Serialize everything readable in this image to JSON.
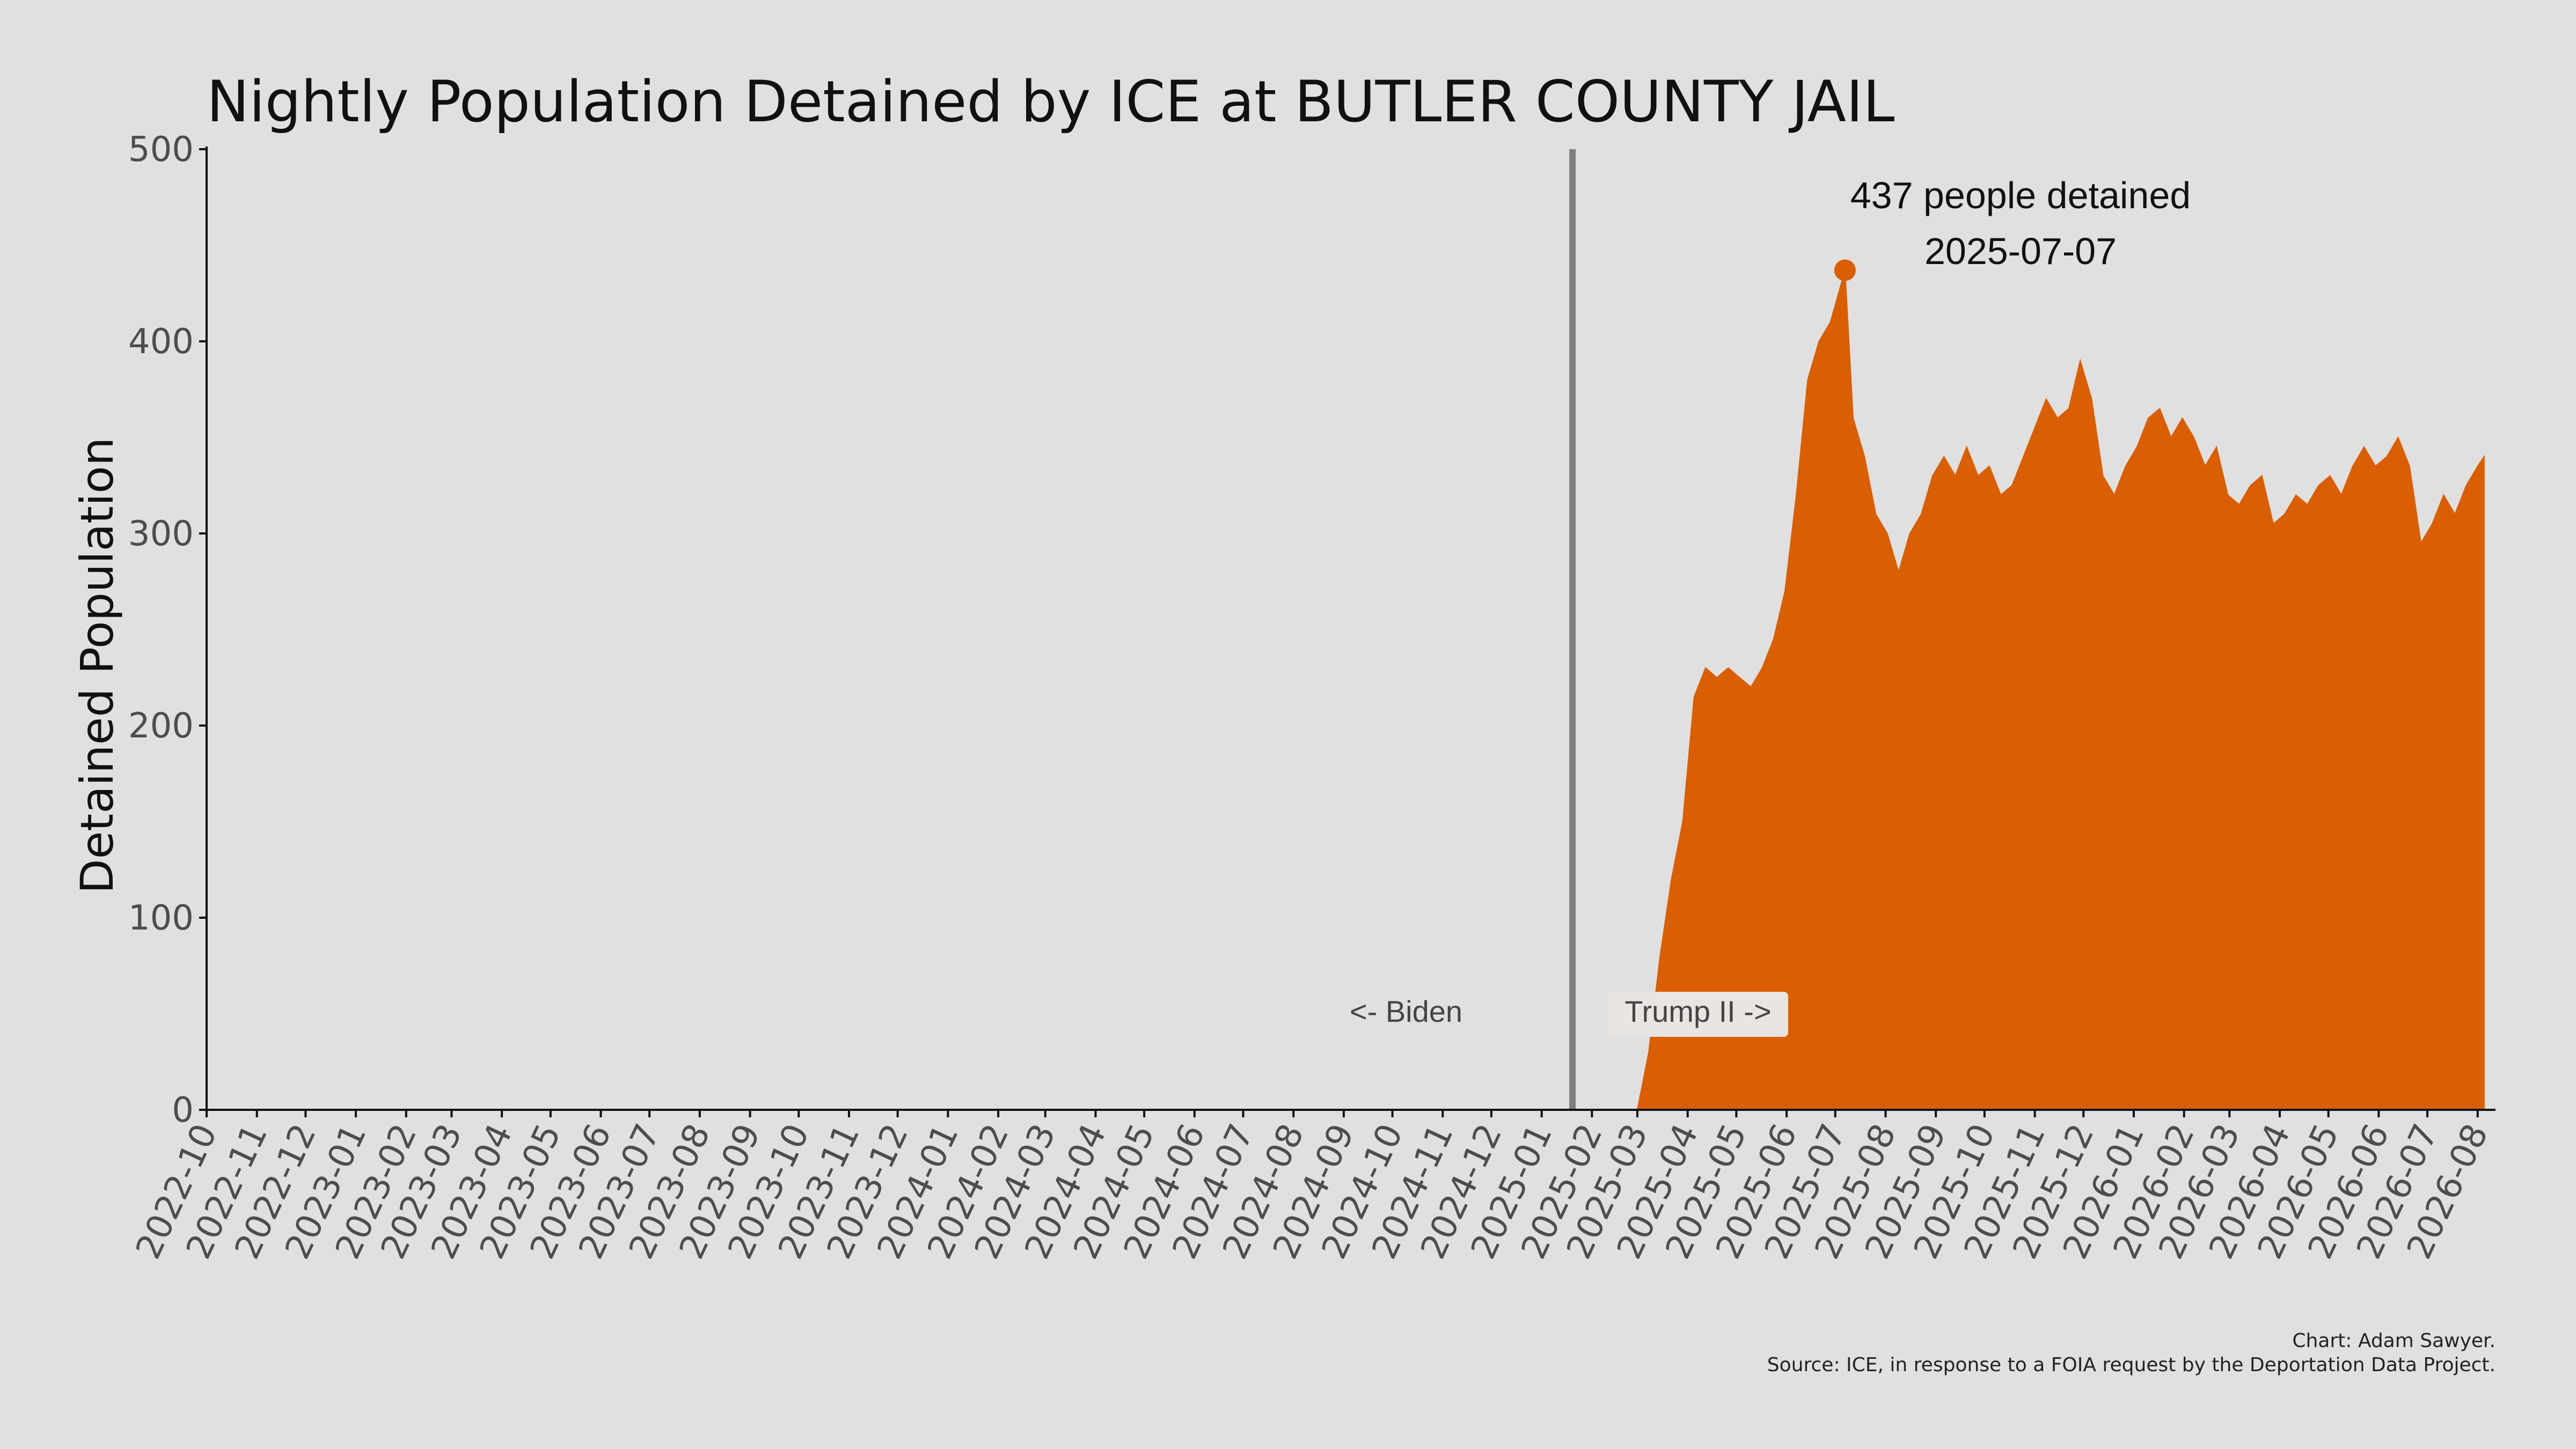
{
  "chart_data": {
    "type": "area",
    "title": "Nightly Population Detained by ICE at BUTLER COUNTY JAIL",
    "xlabel": "",
    "ylabel": "Detained Population",
    "xlim": [
      "2022-10-01",
      "2026-08-12"
    ],
    "ylim": [
      0,
      500
    ],
    "y_ticks": [
      "0",
      "100",
      "200",
      "300",
      "400",
      "500"
    ],
    "x_ticks": [
      "2022-10",
      "2022-11",
      "2022-12",
      "2023-01",
      "2023-02",
      "2023-03",
      "2023-04",
      "2023-05",
      "2023-06",
      "2023-07",
      "2023-08",
      "2023-09",
      "2023-10",
      "2023-11",
      "2023-12",
      "2024-01",
      "2024-02",
      "2024-03",
      "2024-04",
      "2024-05",
      "2024-06",
      "2024-07",
      "2024-08",
      "2024-09",
      "2024-10",
      "2024-11",
      "2024-12",
      "2025-01",
      "2025-02",
      "2025-03",
      "2025-04",
      "2025-05",
      "2025-06",
      "2025-07",
      "2025-08",
      "2025-09",
      "2025-10",
      "2025-11",
      "2025-12",
      "2026-01",
      "2026-02",
      "2026-03",
      "2026-04",
      "2026-05",
      "2026-06",
      "2026-07",
      "2026-08"
    ],
    "grid": false,
    "series": [
      {
        "color": "#d95f02",
        "x": [
          "2025-03-01",
          "2025-03-08",
          "2025-03-15",
          "2025-03-22",
          "2025-03-29",
          "2025-04-05",
          "2025-04-12",
          "2025-04-19",
          "2025-04-26",
          "2025-05-03",
          "2025-05-10",
          "2025-05-17",
          "2025-05-24",
          "2025-05-31",
          "2025-06-07",
          "2025-06-14",
          "2025-06-21",
          "2025-06-28",
          "2025-07-07",
          "2025-07-12",
          "2025-07-19",
          "2025-07-26",
          "2025-08-02",
          "2025-08-09",
          "2025-08-16",
          "2025-08-23",
          "2025-08-30",
          "2025-09-06",
          "2025-09-13",
          "2025-09-20",
          "2025-09-27",
          "2025-10-04",
          "2025-10-11",
          "2025-10-18",
          "2025-10-25",
          "2025-11-01",
          "2025-11-08",
          "2025-11-15",
          "2025-11-22",
          "2025-11-29",
          "2025-12-06",
          "2025-12-13",
          "2025-12-20",
          "2025-12-27",
          "2026-01-03",
          "2026-01-10",
          "2026-01-17",
          "2026-01-24",
          "2026-01-31",
          "2026-02-07",
          "2026-02-14",
          "2026-02-21",
          "2026-02-28",
          "2026-03-07",
          "2026-03-14",
          "2026-03-21",
          "2026-03-28",
          "2026-04-04",
          "2026-04-11",
          "2026-04-18",
          "2026-04-25",
          "2026-05-02",
          "2026-05-09",
          "2026-05-16",
          "2026-05-23",
          "2026-05-30",
          "2026-06-06",
          "2026-06-13",
          "2026-06-20",
          "2026-06-27",
          "2026-07-04",
          "2026-07-11",
          "2026-07-18",
          "2026-07-25",
          "2026-08-01",
          "2026-08-05"
        ],
        "y": [
          0,
          30,
          80,
          120,
          150,
          215,
          230,
          225,
          230,
          225,
          220,
          230,
          245,
          270,
          320,
          380,
          400,
          410,
          437,
          360,
          340,
          310,
          300,
          280,
          300,
          310,
          330,
          340,
          330,
          345,
          330,
          335,
          320,
          325,
          340,
          355,
          370,
          360,
          365,
          390,
          370,
          330,
          320,
          335,
          345,
          360,
          365,
          350,
          360,
          350,
          335,
          345,
          320,
          315,
          325,
          330,
          305,
          310,
          320,
          315,
          325,
          330,
          320,
          335,
          345,
          335,
          340,
          350,
          335,
          295,
          305,
          320,
          310,
          325,
          335,
          340
        ]
      }
    ],
    "markers": [
      {
        "type": "vline",
        "x": "2025-01-20"
      }
    ],
    "annotations": [
      {
        "text": "437 people detained",
        "x": "2025-07-07",
        "y": 437
      },
      {
        "text": "2025-07-07",
        "x": "2025-07-07",
        "y": 437
      }
    ],
    "era_labels": {
      "left": "<- Biden",
      "right": "Trump II ->"
    },
    "caption": [
      "Chart: Adam Sawyer.",
      "Source: ICE, in response to a FOIA request by the Deportation Data Project."
    ]
  }
}
